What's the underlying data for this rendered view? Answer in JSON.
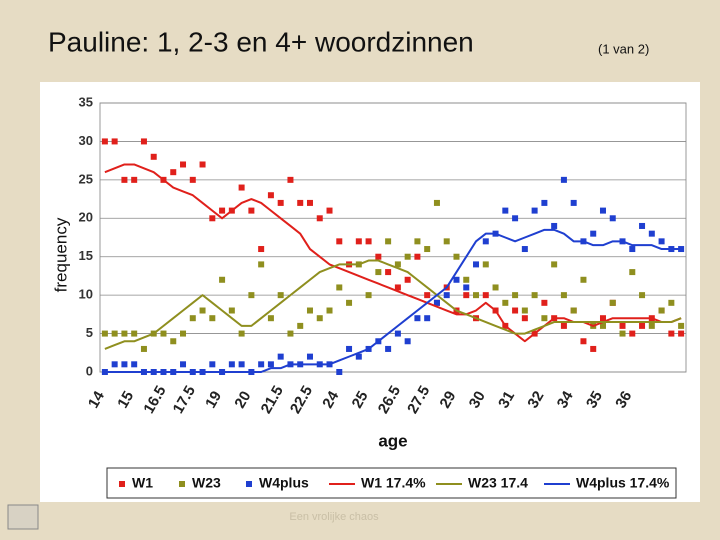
{
  "chart_data": {
    "type": "scatter-line",
    "title": "Pauline: 1, 2-3 en 4+ woordzinnen",
    "subtitle": "(1 van 2)",
    "footer": "Een vrolijke chaos",
    "x_label": "age",
    "y_label": "frequency",
    "categories": [
      "14",
      null,
      null,
      "15",
      null,
      null,
      "16.5",
      null,
      null,
      "17.5",
      null,
      null,
      "19",
      null,
      null,
      "20",
      null,
      null,
      "21.5",
      null,
      null,
      "22.5",
      null,
      null,
      "24",
      null,
      null,
      "25",
      null,
      null,
      "26.5",
      null,
      null,
      "27.5",
      null,
      null,
      "29",
      null,
      null,
      "30",
      null,
      null,
      "31",
      null,
      null,
      "32",
      null,
      null,
      "34",
      null,
      null,
      "35",
      null,
      null,
      "36",
      null,
      null,
      null,
      null,
      null
    ],
    "ylim": [
      0,
      35
    ],
    "yticks": [
      0,
      5,
      10,
      15,
      20,
      25,
      30,
      35
    ],
    "grid": true,
    "legend": "bottom",
    "series": [
      {
        "name": "W1",
        "color": "#e0201b",
        "mode": "markers",
        "values": [
          30,
          30,
          25,
          25,
          30,
          28,
          25,
          26,
          27,
          25,
          27,
          20,
          21,
          21,
          24,
          21,
          16,
          23,
          22,
          25,
          22,
          22,
          20,
          21,
          17,
          14,
          17,
          17,
          15,
          13,
          11,
          12,
          15,
          10,
          9,
          11,
          8,
          10,
          7,
          10,
          8,
          6,
          8,
          7,
          5,
          9,
          7,
          6,
          8,
          4,
          3,
          7,
          9,
          6,
          5,
          6,
          7,
          8,
          5,
          5
        ]
      },
      {
        "name": "W23",
        "color": "#8f8f1f",
        "mode": "markers",
        "values": [
          5,
          5,
          5,
          5,
          3,
          5,
          5,
          4,
          5,
          7,
          8,
          7,
          12,
          8,
          5,
          10,
          14,
          7,
          10,
          5,
          6,
          8,
          7,
          8,
          11,
          9,
          14,
          10,
          13,
          17,
          14,
          15,
          17,
          16,
          22,
          17,
          15,
          12,
          10,
          14,
          11,
          9,
          10,
          8,
          10,
          7,
          14,
          10,
          8,
          12,
          6,
          6,
          9,
          5,
          13,
          10,
          6,
          8,
          9,
          6
        ]
      },
      {
        "name": "W4plus",
        "color": "#1f3fd0",
        "mode": "markers",
        "values": [
          0,
          1,
          1,
          1,
          0,
          0,
          0,
          0,
          1,
          0,
          0,
          1,
          0,
          1,
          1,
          0,
          1,
          1,
          2,
          1,
          1,
          2,
          1,
          1,
          0,
          3,
          2,
          3,
          4,
          3,
          5,
          4,
          7,
          7,
          9,
          10,
          12,
          11,
          14,
          17,
          18,
          21,
          20,
          16,
          21,
          22,
          19,
          25,
          22,
          17,
          18,
          21,
          20,
          17,
          16,
          19,
          18,
          17,
          16,
          16
        ]
      },
      {
        "name": "W1 17.4%",
        "color": "#e0201b",
        "mode": "line",
        "values": [
          26,
          26.5,
          27,
          27,
          26.5,
          26,
          25,
          24,
          23.5,
          23,
          22,
          21,
          20,
          21,
          22,
          22.5,
          22,
          21,
          20,
          19,
          18,
          16,
          15,
          14,
          13.5,
          13,
          12.5,
          12,
          11.5,
          11,
          10.5,
          10,
          9.5,
          9,
          8.5,
          8,
          7.5,
          7.5,
          8,
          9,
          8,
          6,
          5,
          4,
          5,
          6,
          7,
          7,
          6.5,
          6.5,
          6,
          6.5,
          7,
          7,
          7,
          7,
          7,
          6.5,
          6.5,
          7
        ]
      },
      {
        "name": "W23 17.4",
        "color": "#8f8f1f",
        "mode": "line",
        "values": [
          3,
          3.5,
          4,
          4,
          4.5,
          5,
          6,
          7,
          8,
          9,
          10,
          9,
          8,
          7,
          6,
          6,
          7,
          8,
          9,
          10,
          11,
          12,
          13,
          13.5,
          14,
          14,
          14,
          14.5,
          14.5,
          14,
          13.5,
          13,
          12,
          11,
          10,
          9,
          8,
          7.5,
          7,
          6.5,
          6,
          5.5,
          5,
          5,
          5.5,
          6,
          6.5,
          6.5,
          6.5,
          6.5,
          6.5,
          6.5,
          6.5,
          6.5,
          6.5,
          6.5,
          6.5,
          6.5,
          6.5,
          7
        ]
      },
      {
        "name": "W4plus 17.4%",
        "color": "#1f3fd0",
        "mode": "line",
        "values": [
          0,
          0,
          0,
          0,
          0,
          0,
          0,
          0,
          0,
          0,
          0,
          0,
          0,
          0,
          0,
          0,
          0,
          0.5,
          0.5,
          1,
          1,
          1,
          1,
          1,
          1.5,
          2,
          2.5,
          3,
          4,
          5,
          6,
          7,
          8,
          9,
          10,
          11,
          13,
          15,
          17,
          18,
          18,
          17.5,
          17,
          17.5,
          18,
          18.5,
          18.5,
          18,
          17,
          17,
          16.5,
          16.5,
          17,
          17,
          16.5,
          16.5,
          16.5,
          16,
          16,
          16
        ]
      }
    ]
  }
}
